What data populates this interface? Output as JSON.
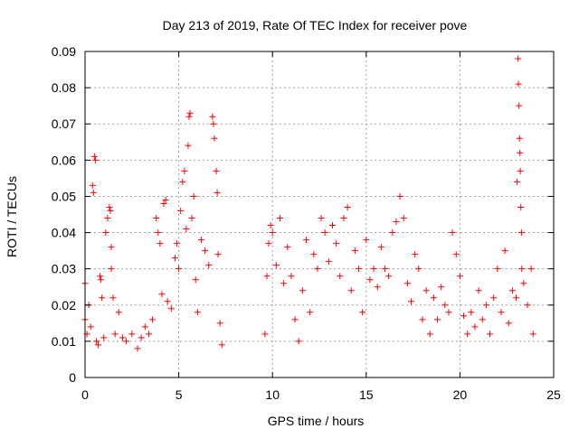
{
  "chart_data": {
    "type": "scatter",
    "title": "Day 213 of 2019, Rate Of TEC Index for receiver pove",
    "xlabel": "GPS time / hours",
    "ylabel": "ROTI / TECUs",
    "xlim": [
      0,
      25
    ],
    "ylim": [
      0,
      0.09
    ],
    "xticks": [
      0,
      5,
      10,
      15,
      20,
      25
    ],
    "xtick_labels": [
      "0",
      "5",
      "10",
      "15",
      "20",
      "25"
    ],
    "yticks": [
      0,
      0.01,
      0.02,
      0.03,
      0.04,
      0.05,
      0.06,
      0.07,
      0.08,
      0.09
    ],
    "ytick_labels": [
      "0",
      "0.01",
      "0.02",
      "0.03",
      "0.04",
      "0.05",
      "0.06",
      "0.07",
      "0.08",
      "0.09"
    ],
    "grid": true,
    "marker": "+",
    "marker_color": "#ff0000",
    "series": [
      {
        "name": "",
        "points": [
          [
            0.0,
            0.026
          ],
          [
            0.0,
            0.016
          ],
          [
            0.1,
            0.012
          ],
          [
            0.2,
            0.02
          ],
          [
            0.3,
            0.014
          ],
          [
            0.4,
            0.053
          ],
          [
            0.45,
            0.051
          ],
          [
            0.5,
            0.061
          ],
          [
            0.55,
            0.06
          ],
          [
            0.6,
            0.01
          ],
          [
            0.7,
            0.009
          ],
          [
            0.8,
            0.028
          ],
          [
            0.85,
            0.027
          ],
          [
            0.9,
            0.022
          ],
          [
            1.0,
            0.011
          ],
          [
            1.1,
            0.04
          ],
          [
            1.2,
            0.044
          ],
          [
            1.3,
            0.047
          ],
          [
            1.35,
            0.046
          ],
          [
            1.4,
            0.036
          ],
          [
            1.4,
            0.03
          ],
          [
            1.5,
            0.022
          ],
          [
            1.6,
            0.012
          ],
          [
            1.8,
            0.018
          ],
          [
            2.0,
            0.011
          ],
          [
            2.2,
            0.01
          ],
          [
            2.5,
            0.012
          ],
          [
            2.8,
            0.008
          ],
          [
            3.0,
            0.011
          ],
          [
            3.2,
            0.014
          ],
          [
            3.4,
            0.012
          ],
          [
            3.6,
            0.016
          ],
          [
            3.8,
            0.044
          ],
          [
            3.9,
            0.04
          ],
          [
            4.0,
            0.037
          ],
          [
            4.1,
            0.023
          ],
          [
            4.2,
            0.048
          ],
          [
            4.3,
            0.049
          ],
          [
            4.4,
            0.021
          ],
          [
            4.6,
            0.019
          ],
          [
            4.8,
            0.033
          ],
          [
            4.9,
            0.037
          ],
          [
            5.0,
            0.03
          ],
          [
            5.1,
            0.046
          ],
          [
            5.2,
            0.054
          ],
          [
            5.3,
            0.057
          ],
          [
            5.4,
            0.041
          ],
          [
            5.5,
            0.064
          ],
          [
            5.55,
            0.072
          ],
          [
            5.6,
            0.073
          ],
          [
            5.7,
            0.044
          ],
          [
            5.8,
            0.05
          ],
          [
            5.9,
            0.027
          ],
          [
            6.0,
            0.018
          ],
          [
            6.2,
            0.038
          ],
          [
            6.4,
            0.035
          ],
          [
            6.6,
            0.031
          ],
          [
            6.8,
            0.072
          ],
          [
            6.85,
            0.07
          ],
          [
            6.9,
            0.066
          ],
          [
            7.0,
            0.057
          ],
          [
            7.05,
            0.051
          ],
          [
            7.1,
            0.034
          ],
          [
            7.2,
            0.015
          ],
          [
            7.3,
            0.009
          ],
          [
            9.6,
            0.012
          ],
          [
            9.7,
            0.028
          ],
          [
            9.8,
            0.037
          ],
          [
            9.9,
            0.042
          ],
          [
            10.0,
            0.04
          ],
          [
            10.2,
            0.031
          ],
          [
            10.4,
            0.044
          ],
          [
            10.6,
            0.026
          ],
          [
            10.8,
            0.036
          ],
          [
            11.0,
            0.028
          ],
          [
            11.2,
            0.016
          ],
          [
            11.4,
            0.01
          ],
          [
            11.6,
            0.024
          ],
          [
            11.8,
            0.038
          ],
          [
            12.0,
            0.018
          ],
          [
            12.2,
            0.034
          ],
          [
            12.4,
            0.03
          ],
          [
            12.6,
            0.044
          ],
          [
            12.8,
            0.04
          ],
          [
            13.0,
            0.032
          ],
          [
            13.2,
            0.042
          ],
          [
            13.4,
            0.037
          ],
          [
            13.6,
            0.028
          ],
          [
            13.8,
            0.044
          ],
          [
            14.0,
            0.047
          ],
          [
            14.2,
            0.024
          ],
          [
            14.4,
            0.035
          ],
          [
            14.6,
            0.03
          ],
          [
            14.8,
            0.018
          ],
          [
            15.0,
            0.038
          ],
          [
            15.2,
            0.027
          ],
          [
            15.4,
            0.03
          ],
          [
            15.6,
            0.025
          ],
          [
            15.8,
            0.036
          ],
          [
            16.0,
            0.03
          ],
          [
            16.2,
            0.028
          ],
          [
            16.4,
            0.04
          ],
          [
            16.6,
            0.043
          ],
          [
            16.8,
            0.05
          ],
          [
            17.0,
            0.044
          ],
          [
            17.2,
            0.026
          ],
          [
            17.4,
            0.021
          ],
          [
            17.6,
            0.034
          ],
          [
            17.8,
            0.03
          ],
          [
            18.0,
            0.016
          ],
          [
            18.2,
            0.024
          ],
          [
            18.4,
            0.012
          ],
          [
            18.6,
            0.022
          ],
          [
            18.8,
            0.016
          ],
          [
            19.0,
            0.025
          ],
          [
            19.2,
            0.02
          ],
          [
            19.4,
            0.018
          ],
          [
            19.6,
            0.04
          ],
          [
            19.8,
            0.034
          ],
          [
            20.0,
            0.028
          ],
          [
            20.2,
            0.017
          ],
          [
            20.4,
            0.012
          ],
          [
            20.6,
            0.018
          ],
          [
            20.8,
            0.014
          ],
          [
            21.0,
            0.024
          ],
          [
            21.2,
            0.016
          ],
          [
            21.4,
            0.02
          ],
          [
            21.6,
            0.012
          ],
          [
            21.8,
            0.022
          ],
          [
            22.0,
            0.03
          ],
          [
            22.2,
            0.018
          ],
          [
            22.4,
            0.035
          ],
          [
            22.6,
            0.015
          ],
          [
            22.8,
            0.024
          ],
          [
            23.0,
            0.022
          ],
          [
            23.05,
            0.054
          ],
          [
            23.1,
            0.088
          ],
          [
            23.12,
            0.081
          ],
          [
            23.15,
            0.075
          ],
          [
            23.18,
            0.066
          ],
          [
            23.2,
            0.062
          ],
          [
            23.22,
            0.057
          ],
          [
            23.25,
            0.047
          ],
          [
            23.28,
            0.04
          ],
          [
            23.3,
            0.03
          ],
          [
            23.4,
            0.026
          ],
          [
            23.6,
            0.02
          ],
          [
            23.8,
            0.03
          ],
          [
            23.9,
            0.012
          ]
        ]
      }
    ]
  }
}
